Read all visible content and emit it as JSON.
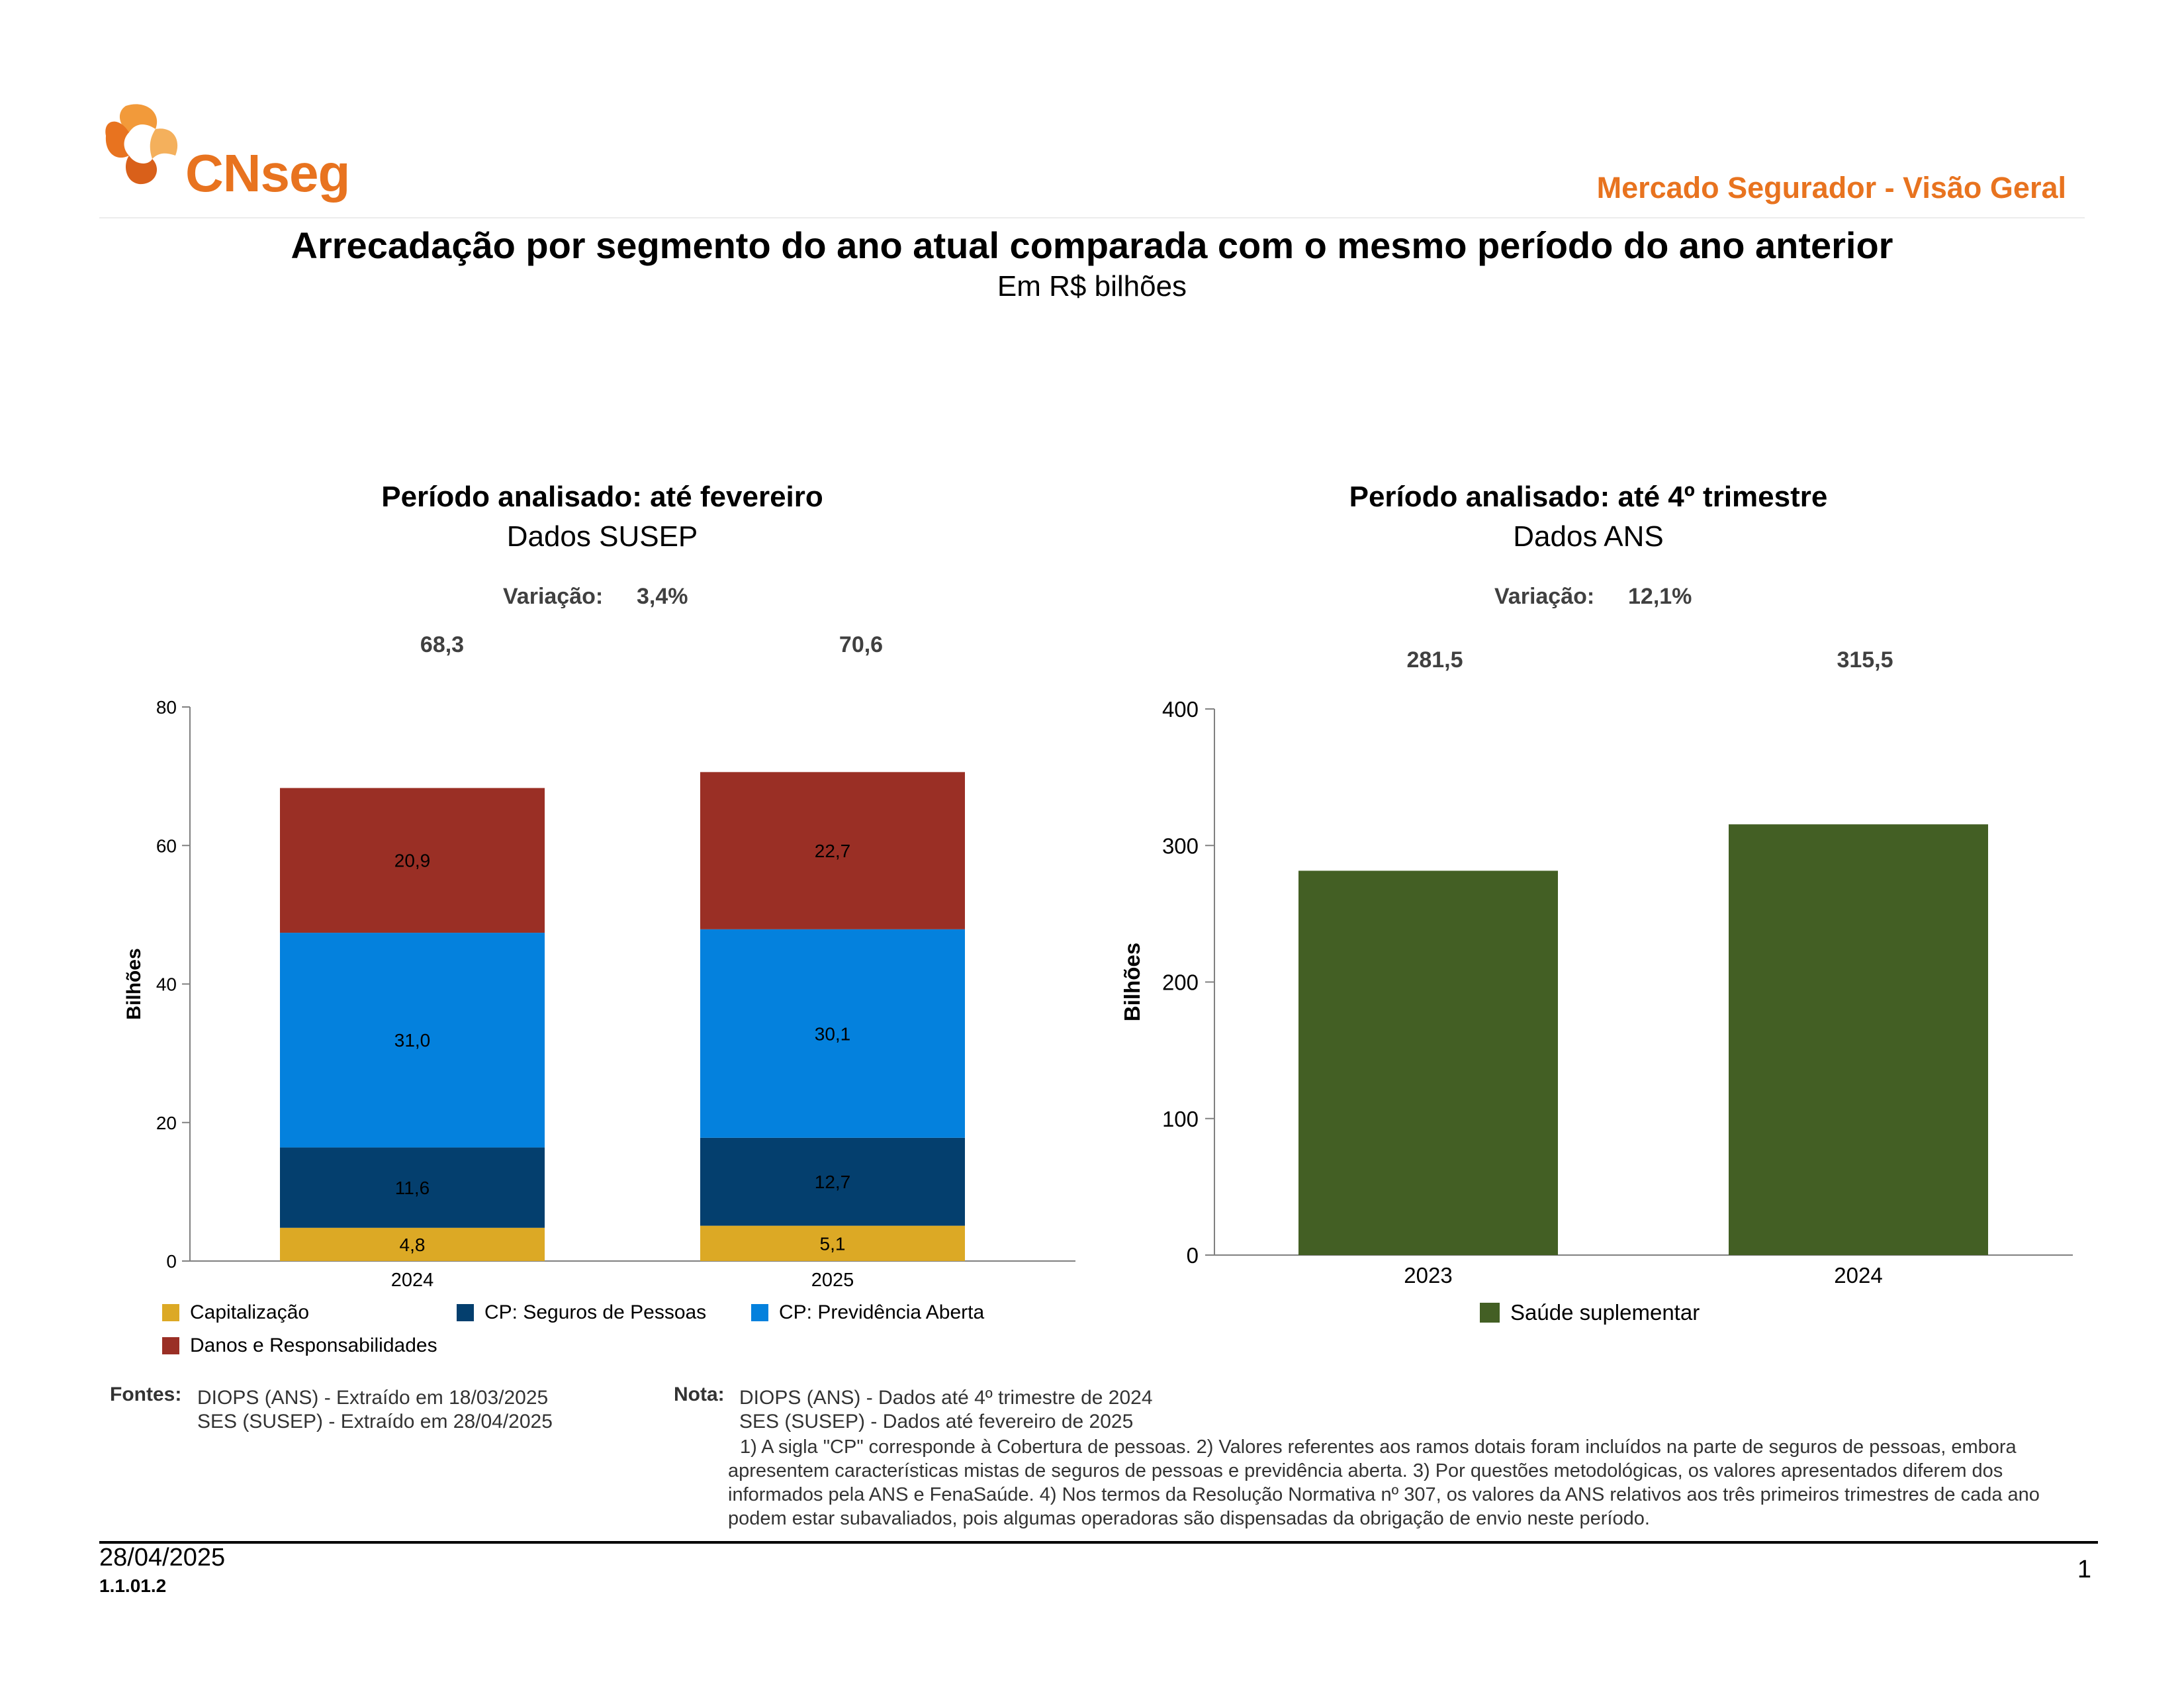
{
  "header": {
    "logo_text": "CNseg",
    "section_title": "Mercado Segurador - Visão Geral"
  },
  "title": "Arrecadação por segmento do ano atual comparada com o mesmo período do ano anterior",
  "subtitle": "Em R$ bilhões",
  "colors": {
    "brand": "#e8731f",
    "capitalizacao": "#dca925",
    "seguros_pessoas": "#043f6e",
    "previdencia": "#0481dd",
    "danos": "#9a2f25",
    "saude": "#435f24"
  },
  "left_panel": {
    "title": "Período analisado: até fevereiro",
    "source": "Dados SUSEP",
    "variation_label": "Variação:",
    "variation_value": "3,4%",
    "totals": [
      "68,3",
      "70,6"
    ]
  },
  "right_panel": {
    "title": "Período analisado: até 4º trimestre",
    "source": "Dados ANS",
    "variation_label": "Variação:",
    "variation_value": "12,1%",
    "totals": [
      "281,5",
      "315,5"
    ]
  },
  "chart_data": [
    {
      "type": "bar",
      "stacked": true,
      "categories": [
        "2024",
        "2025"
      ],
      "ylabel": "Bilhões",
      "ylim": [
        0,
        80
      ],
      "yticks": [
        0,
        20,
        40,
        60,
        80
      ],
      "series": [
        {
          "name": "Capitalização",
          "values": [
            4.8,
            5.1
          ],
          "labels": [
            "4,8",
            "5,1"
          ]
        },
        {
          "name": "CP: Seguros de Pessoas",
          "values": [
            11.6,
            12.7
          ],
          "labels": [
            "11,6",
            "12,7"
          ]
        },
        {
          "name": "CP: Previdência Aberta",
          "values": [
            31.0,
            30.1
          ],
          "labels": [
            "31,0",
            "30,1"
          ]
        },
        {
          "name": "Danos e Responsabilidades",
          "values": [
            20.9,
            22.7
          ],
          "labels": [
            "20,9",
            "22,7"
          ]
        }
      ],
      "legend": "bottom"
    },
    {
      "type": "bar",
      "categories": [
        "2023",
        "2024"
      ],
      "ylabel": "Bilhões",
      "ylim": [
        0,
        400
      ],
      "yticks": [
        0,
        100,
        200,
        300,
        400
      ],
      "series": [
        {
          "name": "Saúde suplementar",
          "values": [
            281.5,
            315.5
          ]
        }
      ],
      "legend": "bottom"
    }
  ],
  "footer": {
    "fontes_label": "Fontes:",
    "fontes": [
      "DIOPS (ANS) -  Extraído em 18/03/2025",
      "SES (SUSEP) -  Extraído em 28/04/2025"
    ],
    "nota_label": "Nota:",
    "nota_lines": [
      "DIOPS (ANS) - Dados até 4º trimestre de 2024",
      "SES (SUSEP) - Dados até fevereiro de 2025"
    ],
    "nota_text": "1) A sigla \"CP\" corresponde à Cobertura de pessoas. 2) Valores referentes aos ramos dotais foram incluídos na parte de seguros de pessoas, embora apresentem características mistas de seguros de pessoas e previdência aberta. 3) Por questões metodológicas, os valores apresentados diferem dos informados pela ANS e FenaSaúde. 4) Nos termos da Resolução Normativa nº 307, os valores da ANS relativos aos três primeiros trimestres de cada ano podem estar subavaliados, pois algumas operadoras são dispensadas da obrigação de envio neste período.",
    "date": "28/04/2025",
    "code": "1.1.01.2",
    "page": "1"
  }
}
